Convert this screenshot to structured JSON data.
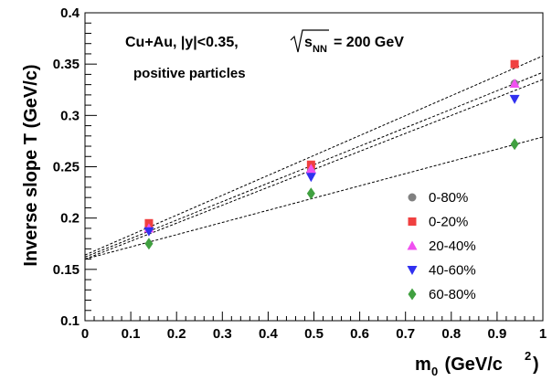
{
  "chart_data": {
    "type": "scatter",
    "title": "",
    "annotations": {
      "line1_prefix": "Cu+Au, |y|<0.35,",
      "sqrt_base": "s",
      "sqrt_sub": "NN",
      "line1_suffix": "= 200 GeV",
      "line2": "positive particles"
    },
    "xlabel": {
      "main": "m",
      "sub": "0",
      "rest": " (GeV/c",
      "sup": "2",
      "close": ")"
    },
    "ylabel": "Inverse slope T (GeV/c)",
    "xlim": [
      0,
      1
    ],
    "ylim": [
      0.1,
      0.4
    ],
    "x_ticks": [
      "0",
      "0.1",
      "0.2",
      "0.3",
      "0.4",
      "0.5",
      "0.6",
      "0.7",
      "0.8",
      "0.9",
      "1"
    ],
    "y_ticks": [
      "0.1",
      "0.15",
      "0.2",
      "0.25",
      "0.3",
      "0.35",
      "0.4"
    ],
    "legend_position": "bottom-right",
    "series": [
      {
        "name": "0-80%",
        "marker": "circle",
        "color": "#808080",
        "x": [
          0.1396,
          0.4937,
          0.9383
        ],
        "y": [
          0.191,
          0.247,
          0.331
        ]
      },
      {
        "name": "0-20%",
        "marker": "square",
        "color": "#f04040",
        "x": [
          0.1396,
          0.4937,
          0.9383
        ],
        "y": [
          0.195,
          0.252,
          0.35
        ]
      },
      {
        "name": "20-40%",
        "marker": "triangle-up",
        "color": "#f050f0",
        "x": [
          0.1396,
          0.4937,
          0.9383
        ],
        "y": [
          0.19,
          0.248,
          0.331
        ]
      },
      {
        "name": "40-60%",
        "marker": "triangle-down",
        "color": "#3030f0",
        "x": [
          0.1396,
          0.4937,
          0.9383
        ],
        "y": [
          0.187,
          0.24,
          0.316
        ]
      },
      {
        "name": "60-80%",
        "marker": "diamond",
        "color": "#40a040",
        "x": [
          0.1396,
          0.4937,
          0.9383
        ],
        "y": [
          0.175,
          0.224,
          0.272
        ]
      }
    ],
    "fits": [
      {
        "x": [
          0,
          1
        ],
        "y": [
          0.164,
          0.358
        ]
      },
      {
        "x": [
          0,
          1
        ],
        "y": [
          0.162,
          0.342
        ]
      },
      {
        "x": [
          0,
          1
        ],
        "y": [
          0.16,
          0.335
        ]
      },
      {
        "x": [
          0,
          1
        ],
        "y": [
          0.16,
          0.279
        ]
      }
    ]
  }
}
